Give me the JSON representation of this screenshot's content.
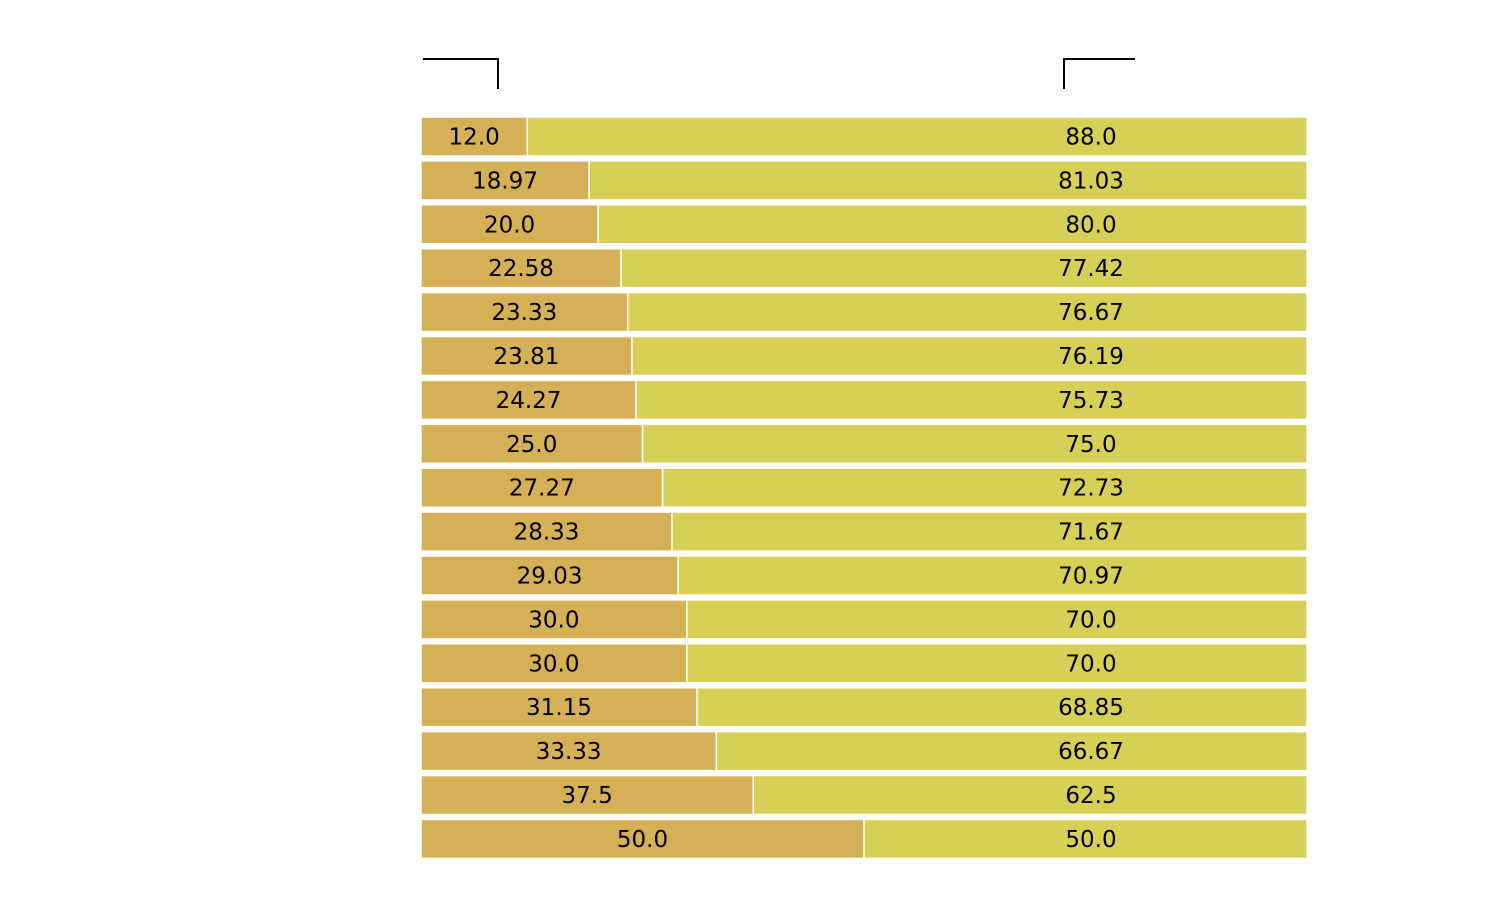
{
  "chart_data": {
    "type": "bar",
    "orientation": "horizontal",
    "stacked": true,
    "normalized_to": 100,
    "grid": false,
    "legend": "none",
    "xlim": [
      0,
      100
    ],
    "series": [
      {
        "color": "#d6b056",
        "values": [
          12.0,
          18.97,
          20.0,
          22.58,
          23.33,
          23.81,
          24.27,
          25.0,
          27.27,
          28.33,
          29.03,
          30.0,
          30.0,
          31.15,
          33.33,
          37.5,
          50.0
        ],
        "labels": [
          "12.0",
          "18.97",
          "20.0",
          "22.58",
          "23.33",
          "23.81",
          "24.27",
          "25.0",
          "27.27",
          "28.33",
          "29.03",
          "30.0",
          "30.0",
          "31.15",
          "33.33",
          "37.5",
          "50.0"
        ]
      },
      {
        "color": "#d8cf56",
        "values": [
          88.0,
          81.03,
          80.0,
          77.42,
          76.67,
          76.19,
          75.73,
          75.0,
          72.73,
          71.67,
          70.97,
          70.0,
          70.0,
          68.85,
          66.67,
          62.5,
          50.0
        ],
        "labels": [
          "88.0",
          "81.03",
          "80.0",
          "77.42",
          "76.67",
          "76.19",
          "75.73",
          "75.0",
          "72.73",
          "71.67",
          "70.97",
          "70.0",
          "70.0",
          "68.85",
          "66.67",
          "62.5",
          "50.0"
        ]
      }
    ]
  }
}
